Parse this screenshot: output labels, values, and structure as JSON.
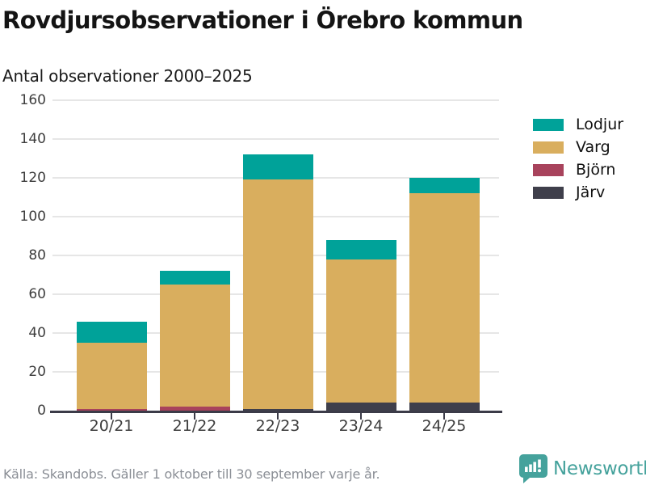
{
  "chart_data": {
    "type": "bar",
    "stacked": true,
    "title": "Rovdjursobservationer i Örebro kommun",
    "subtitle": "Antal observationer 2000–2025",
    "categories": [
      "20/21",
      "21/22",
      "22/23",
      "23/24",
      "24/25"
    ],
    "series": [
      {
        "name": "Lodjur",
        "color": "#00a299",
        "values": [
          11,
          7,
          13,
          10,
          8
        ]
      },
      {
        "name": "Varg",
        "color": "#d9ae5e",
        "values": [
          34,
          63,
          118,
          74,
          108
        ]
      },
      {
        "name": "Björn",
        "color": "#a8435c",
        "values": [
          1,
          2,
          0,
          0,
          0
        ]
      },
      {
        "name": "Järv",
        "color": "#3f3f4b",
        "values": [
          0,
          0,
          1,
          4,
          4
        ]
      }
    ],
    "stack_order_bottom_to_top": [
      "Järv",
      "Björn",
      "Varg",
      "Lodjur"
    ],
    "totals": [
      46,
      72,
      132,
      88,
      120
    ],
    "ylim": [
      0,
      160
    ],
    "yticks": [
      0,
      20,
      40,
      60,
      80,
      100,
      120,
      140,
      160
    ],
    "grid": true,
    "legend_position": "right",
    "colors": {
      "gridline": "#e6e6e6",
      "axis": "#3b3b48",
      "text": "#3d3d3d"
    }
  },
  "footer": {
    "source": "Källa: Skandobs. Gäller 1 oktober till 30 september varje år."
  },
  "branding": {
    "name": "Newsworthy",
    "logo_icon": "bar-chart-speech-bubble",
    "color": "#45a29c"
  }
}
